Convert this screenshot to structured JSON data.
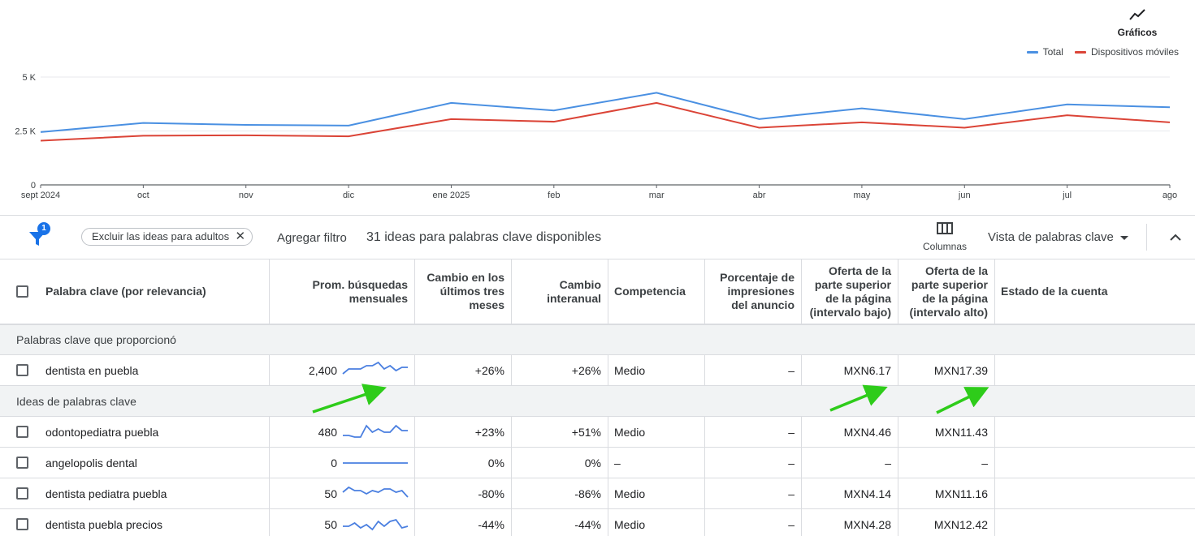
{
  "chart": {
    "graficos_label": "Gráficos",
    "graficos_icon": "trend-line-icon",
    "legend": [
      {
        "name": "Total",
        "color": "#4a90e2"
      },
      {
        "name": "Dispositivos móviles",
        "color": "#db4437"
      }
    ]
  },
  "chart_data": {
    "type": "line",
    "categories": [
      "sept 2024",
      "oct",
      "nov",
      "dic",
      "ene 2025",
      "feb",
      "mar",
      "abr",
      "may",
      "jun",
      "jul",
      "ago"
    ],
    "y_ticks": [
      "0",
      "2.5 K",
      "5 K"
    ],
    "ylim": [
      0,
      5000
    ],
    "grid": true,
    "legend_position": "top-right",
    "series": [
      {
        "name": "Total",
        "color": "#4a90e2",
        "values": [
          2450,
          2870,
          2780,
          2750,
          3800,
          3450,
          4270,
          3050,
          3550,
          3050,
          3730,
          3600
        ]
      },
      {
        "name": "Dispositivos móviles",
        "color": "#db4437",
        "values": [
          2050,
          2280,
          2300,
          2250,
          3050,
          2930,
          3800,
          2650,
          2900,
          2650,
          3230,
          2900
        ]
      }
    ]
  },
  "filter_bar": {
    "filter_badge": "1",
    "chip_label": "Excluir las ideas para adultos",
    "chip_close": "✕",
    "add_filter": "Agregar filtro",
    "ideas_count": "31 ideas para palabras clave disponibles",
    "columns_label": "Columnas",
    "view_label": "Vista de palabras clave"
  },
  "table": {
    "headers": {
      "keyword": "Palabra clave (por relevancia)",
      "avg_searches": "Prom. búsquedas mensuales",
      "three_month": "Cambio en los últimos tres meses",
      "yoy": "Cambio interanual",
      "competition": "Competencia",
      "impression_share": "Porcentaje de impresiones del anuncio",
      "bid_low": "Oferta de la parte superior de la página (intervalo bajo)",
      "bid_high": "Oferta de la parte superior de la página (intervalo alto)",
      "account_status": "Estado de la cuenta"
    },
    "section_provided": "Palabras clave que proporcionó",
    "section_ideas": "Ideas de palabras clave",
    "provided_rows": [
      {
        "keyword": "dentista en puebla",
        "searches": "2,400",
        "three_month": "+26%",
        "yoy": "+26%",
        "competition": "Medio",
        "impression_share": "–",
        "bid_low": "MXN6.17",
        "bid_high": "MXN17.39",
        "account_status": "",
        "trend": [
          3,
          6,
          6,
          6,
          8,
          8,
          10,
          6,
          8,
          5,
          7,
          7
        ]
      }
    ],
    "idea_rows": [
      {
        "keyword": "odontopediatra puebla",
        "searches": "480",
        "three_month": "+23%",
        "yoy": "+51%",
        "competition": "Medio",
        "impression_share": "–",
        "bid_low": "MXN4.46",
        "bid_high": "MXN11.43",
        "account_status": "",
        "trend": [
          3,
          3,
          2,
          2,
          9,
          5,
          7,
          5,
          5,
          9,
          6,
          6
        ]
      },
      {
        "keyword": "angelopolis dental",
        "searches": "0",
        "three_month": "0%",
        "yoy": "0%",
        "competition": "–",
        "impression_share": "–",
        "bid_low": "–",
        "bid_high": "–",
        "account_status": "",
        "trend": [
          5,
          5,
          5,
          5,
          5,
          5,
          5,
          5,
          5,
          5,
          5,
          5
        ]
      },
      {
        "keyword": "dentista pediatra puebla",
        "searches": "50",
        "three_month": "-80%",
        "yoy": "-86%",
        "competition": "Medio",
        "impression_share": "–",
        "bid_low": "MXN4.14",
        "bid_high": "MXN11.16",
        "account_status": "",
        "trend": [
          6,
          9,
          7,
          7,
          5,
          7,
          6,
          8,
          8,
          6,
          7,
          3
        ]
      },
      {
        "keyword": "dentista puebla precios",
        "searches": "50",
        "three_month": "-44%",
        "yoy": "-44%",
        "competition": "Medio",
        "impression_share": "–",
        "bid_low": "MXN4.28",
        "bid_high": "MXN12.42",
        "account_status": "",
        "trend": [
          4,
          4,
          6,
          3,
          5,
          2,
          7,
          4,
          7,
          8,
          3,
          4
        ]
      }
    ]
  },
  "annotation_arrow_color": "#2ecc1a"
}
